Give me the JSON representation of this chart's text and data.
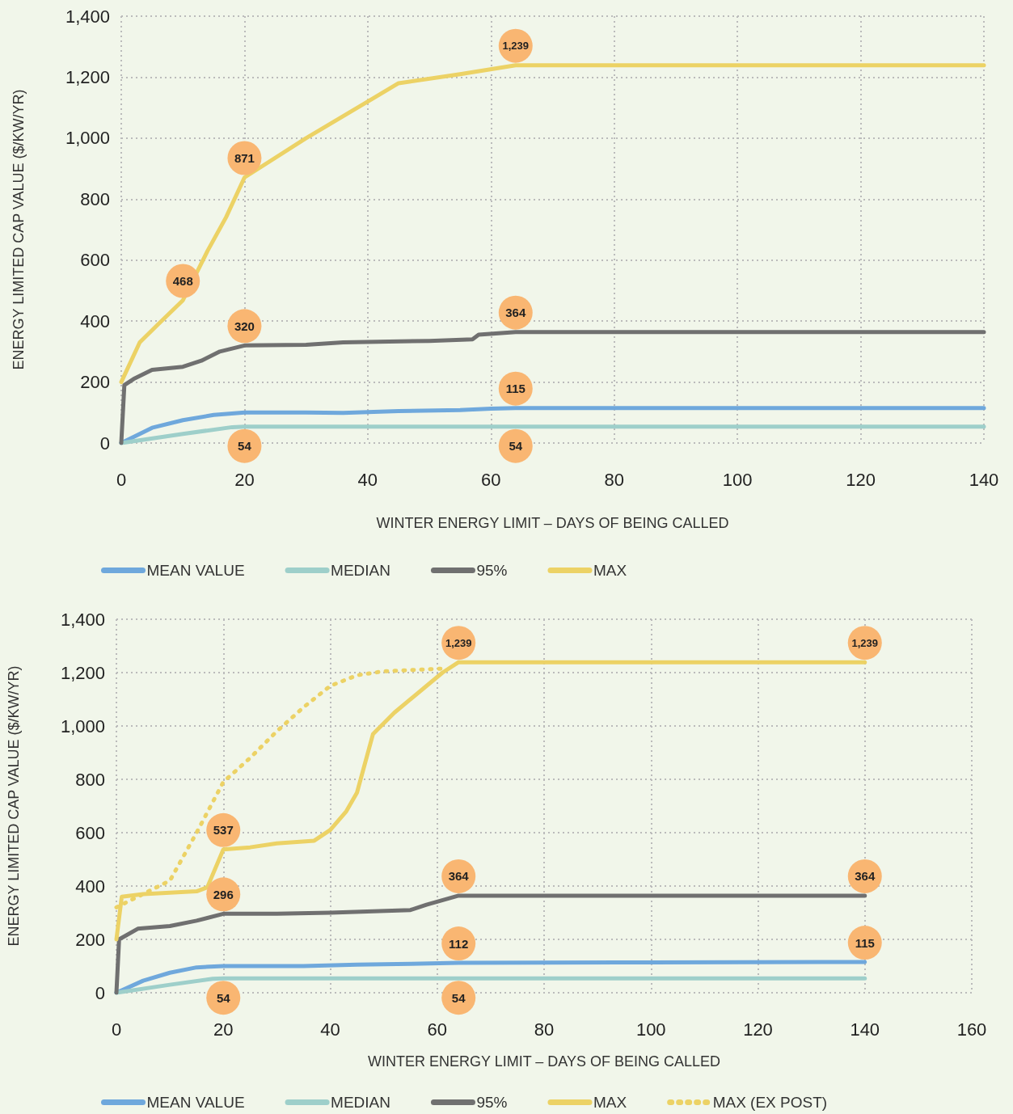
{
  "chart_data": [
    {
      "type": "line",
      "xlabel": "WINTER ENERGY LIMIT – DAYS OF BEING CALLED",
      "ylabel": "ENERGY LIMITED CAP VALUE ($/KW/YR)",
      "xlim": [
        0,
        140
      ],
      "xticks": [
        0,
        20,
        40,
        60,
        80,
        100,
        120,
        140
      ],
      "ylim": [
        0,
        1400
      ],
      "yticks": [
        0,
        200,
        400,
        600,
        800,
        {
          "value": 1000,
          "label": "1,000"
        },
        {
          "value": 1200,
          "label": "1,200"
        },
        {
          "value": 1400,
          "label": "1,400"
        }
      ],
      "grid": true,
      "legend": "bottom",
      "marker": "none",
      "series": [
        {
          "name": "MEAN VALUE",
          "color": "#6fa8dc",
          "x": [
            0,
            5,
            10,
            15,
            20,
            30,
            36,
            45,
            55,
            60,
            64,
            140
          ],
          "values": [
            0,
            50,
            75,
            92,
            100,
            100,
            99,
            105,
            108,
            113,
            115,
            115
          ],
          "value_labels": [
            null,
            null,
            null,
            null,
            null,
            null,
            null,
            null,
            null,
            null,
            "115",
            null
          ]
        },
        {
          "name": "MEDIAN",
          "color": "#9ecfca",
          "x": [
            0,
            10,
            18,
            20,
            64,
            140
          ],
          "values": [
            0,
            30,
            52,
            54,
            54,
            54
          ],
          "value_labels": [
            null,
            null,
            null,
            "54",
            "54",
            null
          ]
        },
        {
          "name": "95%",
          "color": "#707070",
          "x": [
            0,
            0.5,
            2,
            5,
            10,
            13,
            16,
            20,
            30,
            36,
            50,
            57,
            58,
            64,
            140
          ],
          "values": [
            0,
            190,
            210,
            240,
            250,
            270,
            300,
            320,
            322,
            330,
            335,
            340,
            355,
            364,
            364
          ],
          "value_labels": [
            null,
            null,
            null,
            null,
            null,
            null,
            null,
            "320",
            null,
            null,
            null,
            null,
            null,
            "364",
            null
          ]
        },
        {
          "name": "MAX",
          "color": "#ecd265",
          "x": [
            0,
            3,
            6,
            10,
            14,
            17,
            20,
            30,
            40,
            45,
            55,
            64,
            140
          ],
          "values": [
            200,
            330,
            390,
            468,
            630,
            740,
            871,
            1000,
            1120,
            1180,
            1210,
            1239,
            1239
          ],
          "value_labels": [
            null,
            null,
            null,
            "468",
            null,
            null,
            "871",
            null,
            null,
            null,
            null,
            "1,239",
            null
          ]
        }
      ]
    },
    {
      "type": "line",
      "xlabel": "WINTER ENERGY LIMIT – DAYS OF BEING CALLED",
      "ylabel": "ENERGY LIMITED CAP VALUE ($/KW/YR)",
      "xlim": [
        0,
        160
      ],
      "xticks": [
        0,
        20,
        40,
        60,
        80,
        100,
        120,
        140,
        160
      ],
      "ylim": [
        0,
        1400
      ],
      "yticks": [
        0,
        200,
        400,
        600,
        800,
        {
          "value": 1000,
          "label": "1,000"
        },
        {
          "value": 1200,
          "label": "1,200"
        },
        {
          "value": 1400,
          "label": "1,400"
        }
      ],
      "grid": true,
      "legend": "bottom",
      "marker": "none",
      "series": [
        {
          "name": "MEAN VALUE",
          "color": "#6fa8dc",
          "x": [
            0,
            5,
            10,
            15,
            20,
            35,
            45,
            55,
            64,
            100,
            140
          ],
          "values": [
            0,
            45,
            75,
            95,
            100,
            100,
            105,
            108,
            112,
            114,
            115
          ],
          "value_labels": [
            null,
            null,
            null,
            null,
            null,
            null,
            null,
            null,
            "112",
            null,
            "115"
          ]
        },
        {
          "name": "MEDIAN",
          "color": "#9ecfca",
          "x": [
            0,
            10,
            18,
            20,
            64,
            140
          ],
          "values": [
            0,
            30,
            52,
            54,
            54,
            54
          ],
          "value_labels": [
            null,
            null,
            null,
            "54",
            "54",
            null
          ]
        },
        {
          "name": "95%",
          "color": "#707070",
          "x": [
            0,
            0.5,
            4,
            10,
            15,
            20,
            30,
            40,
            55,
            58,
            64,
            140
          ],
          "values": [
            0,
            200,
            240,
            250,
            270,
            296,
            296,
            300,
            310,
            330,
            364,
            364
          ],
          "value_labels": [
            null,
            null,
            null,
            null,
            null,
            "296",
            null,
            null,
            null,
            null,
            "364",
            "364"
          ]
        },
        {
          "name": "MAX",
          "color": "#ecd265",
          "x": [
            0,
            1,
            5,
            10,
            15,
            17,
            20,
            25,
            30,
            37,
            40,
            43,
            45,
            48,
            52,
            58,
            61,
            64,
            140
          ],
          "values": [
            200,
            360,
            370,
            375,
            380,
            395,
            537,
            545,
            560,
            570,
            610,
            680,
            750,
            970,
            1050,
            1150,
            1200,
            1239,
            1239
          ],
          "value_labels": [
            null,
            null,
            null,
            null,
            null,
            null,
            "537",
            null,
            null,
            null,
            null,
            null,
            null,
            null,
            null,
            null,
            null,
            "1,239",
            "1,239"
          ]
        },
        {
          "name": "MAX (EX POST)",
          "color": "#ecd265",
          "line_style": "dotted",
          "x": [
            0,
            5,
            10,
            15,
            20,
            25,
            30,
            35,
            40,
            45,
            50,
            61
          ],
          "values": [
            320,
            370,
            420,
            600,
            790,
            880,
            980,
            1070,
            1150,
            1190,
            1205,
            1215
          ]
        }
      ]
    }
  ]
}
